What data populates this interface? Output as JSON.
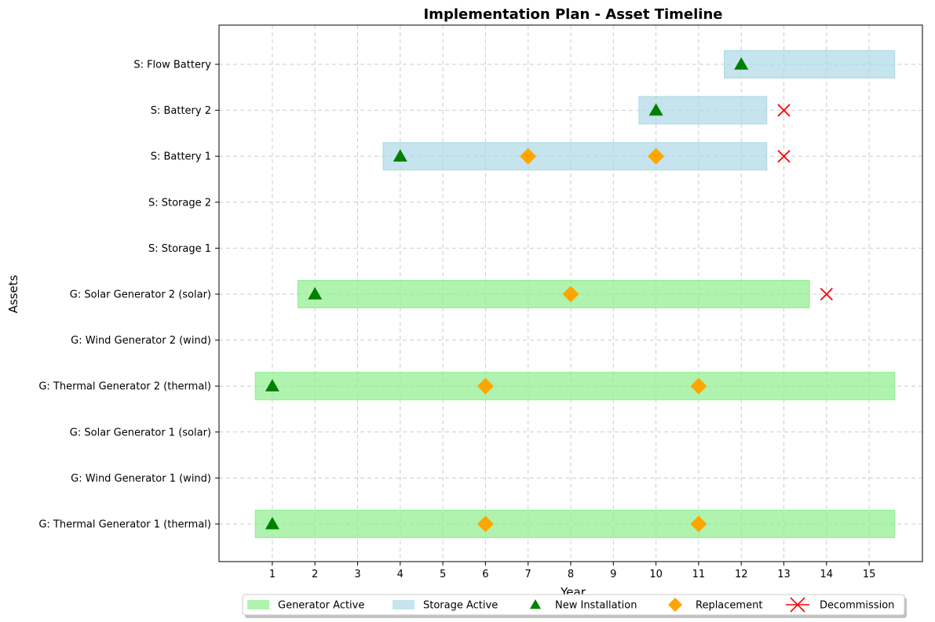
{
  "chart_data": {
    "type": "timeline",
    "title": "Implementation Plan - Asset Timeline",
    "xlabel": "Year",
    "ylabel": "Assets",
    "xlim": [
      -0.25,
      16.25
    ],
    "xticks": [
      1,
      2,
      3,
      4,
      5,
      6,
      7,
      8,
      9,
      10,
      11,
      12,
      13,
      14,
      15
    ],
    "grid": true,
    "legend_position": "bottom",
    "colors": {
      "generator_active": "#90ee90",
      "storage_active": "#add8e6",
      "new_installation": "#008000",
      "replacement": "#ffa500",
      "decommission": "#ff0000"
    },
    "legend": [
      {
        "key": "generator_active",
        "label": "Generator Active",
        "marker": "patch-green"
      },
      {
        "key": "storage_active",
        "label": "Storage Active",
        "marker": "patch-blue"
      },
      {
        "key": "new_installation",
        "label": "New Installation",
        "marker": "triangle"
      },
      {
        "key": "replacement",
        "label": "Replacement",
        "marker": "diamond"
      },
      {
        "key": "decommission",
        "label": "Decommission",
        "marker": "x"
      }
    ],
    "assets": [
      {
        "label": "G: Thermal Generator 1 (thermal)",
        "kind": "generator",
        "active": [
          1,
          15
        ],
        "installs": [
          1
        ],
        "replacements": [
          6,
          11
        ],
        "decommissions": []
      },
      {
        "label": "G: Wind Generator 1 (wind)",
        "kind": "generator",
        "active": null,
        "installs": [],
        "replacements": [],
        "decommissions": []
      },
      {
        "label": "G: Solar Generator 1 (solar)",
        "kind": "generator",
        "active": null,
        "installs": [],
        "replacements": [],
        "decommissions": []
      },
      {
        "label": "G: Thermal Generator 2 (thermal)",
        "kind": "generator",
        "active": [
          1,
          15
        ],
        "installs": [
          1
        ],
        "replacements": [
          6,
          11
        ],
        "decommissions": []
      },
      {
        "label": "G: Wind Generator 2 (wind)",
        "kind": "generator",
        "active": null,
        "installs": [],
        "replacements": [],
        "decommissions": []
      },
      {
        "label": "G: Solar Generator 2 (solar)",
        "kind": "generator",
        "active": [
          2,
          13
        ],
        "installs": [
          2
        ],
        "replacements": [
          8
        ],
        "decommissions": [
          14
        ]
      },
      {
        "label": "S: Storage 1",
        "kind": "storage",
        "active": null,
        "installs": [],
        "replacements": [],
        "decommissions": []
      },
      {
        "label": "S: Storage 2",
        "kind": "storage",
        "active": null,
        "installs": [],
        "replacements": [],
        "decommissions": []
      },
      {
        "label": "S: Battery 1",
        "kind": "storage",
        "active": [
          4,
          12
        ],
        "installs": [
          4
        ],
        "replacements": [
          7,
          10
        ],
        "decommissions": [
          13
        ]
      },
      {
        "label": "S: Battery 2",
        "kind": "storage",
        "active": [
          10,
          12
        ],
        "installs": [
          10
        ],
        "replacements": [],
        "decommissions": [
          13
        ]
      },
      {
        "label": "S: Flow Battery",
        "kind": "storage",
        "active": [
          12,
          15
        ],
        "installs": [
          12
        ],
        "replacements": [],
        "decommissions": []
      }
    ]
  }
}
